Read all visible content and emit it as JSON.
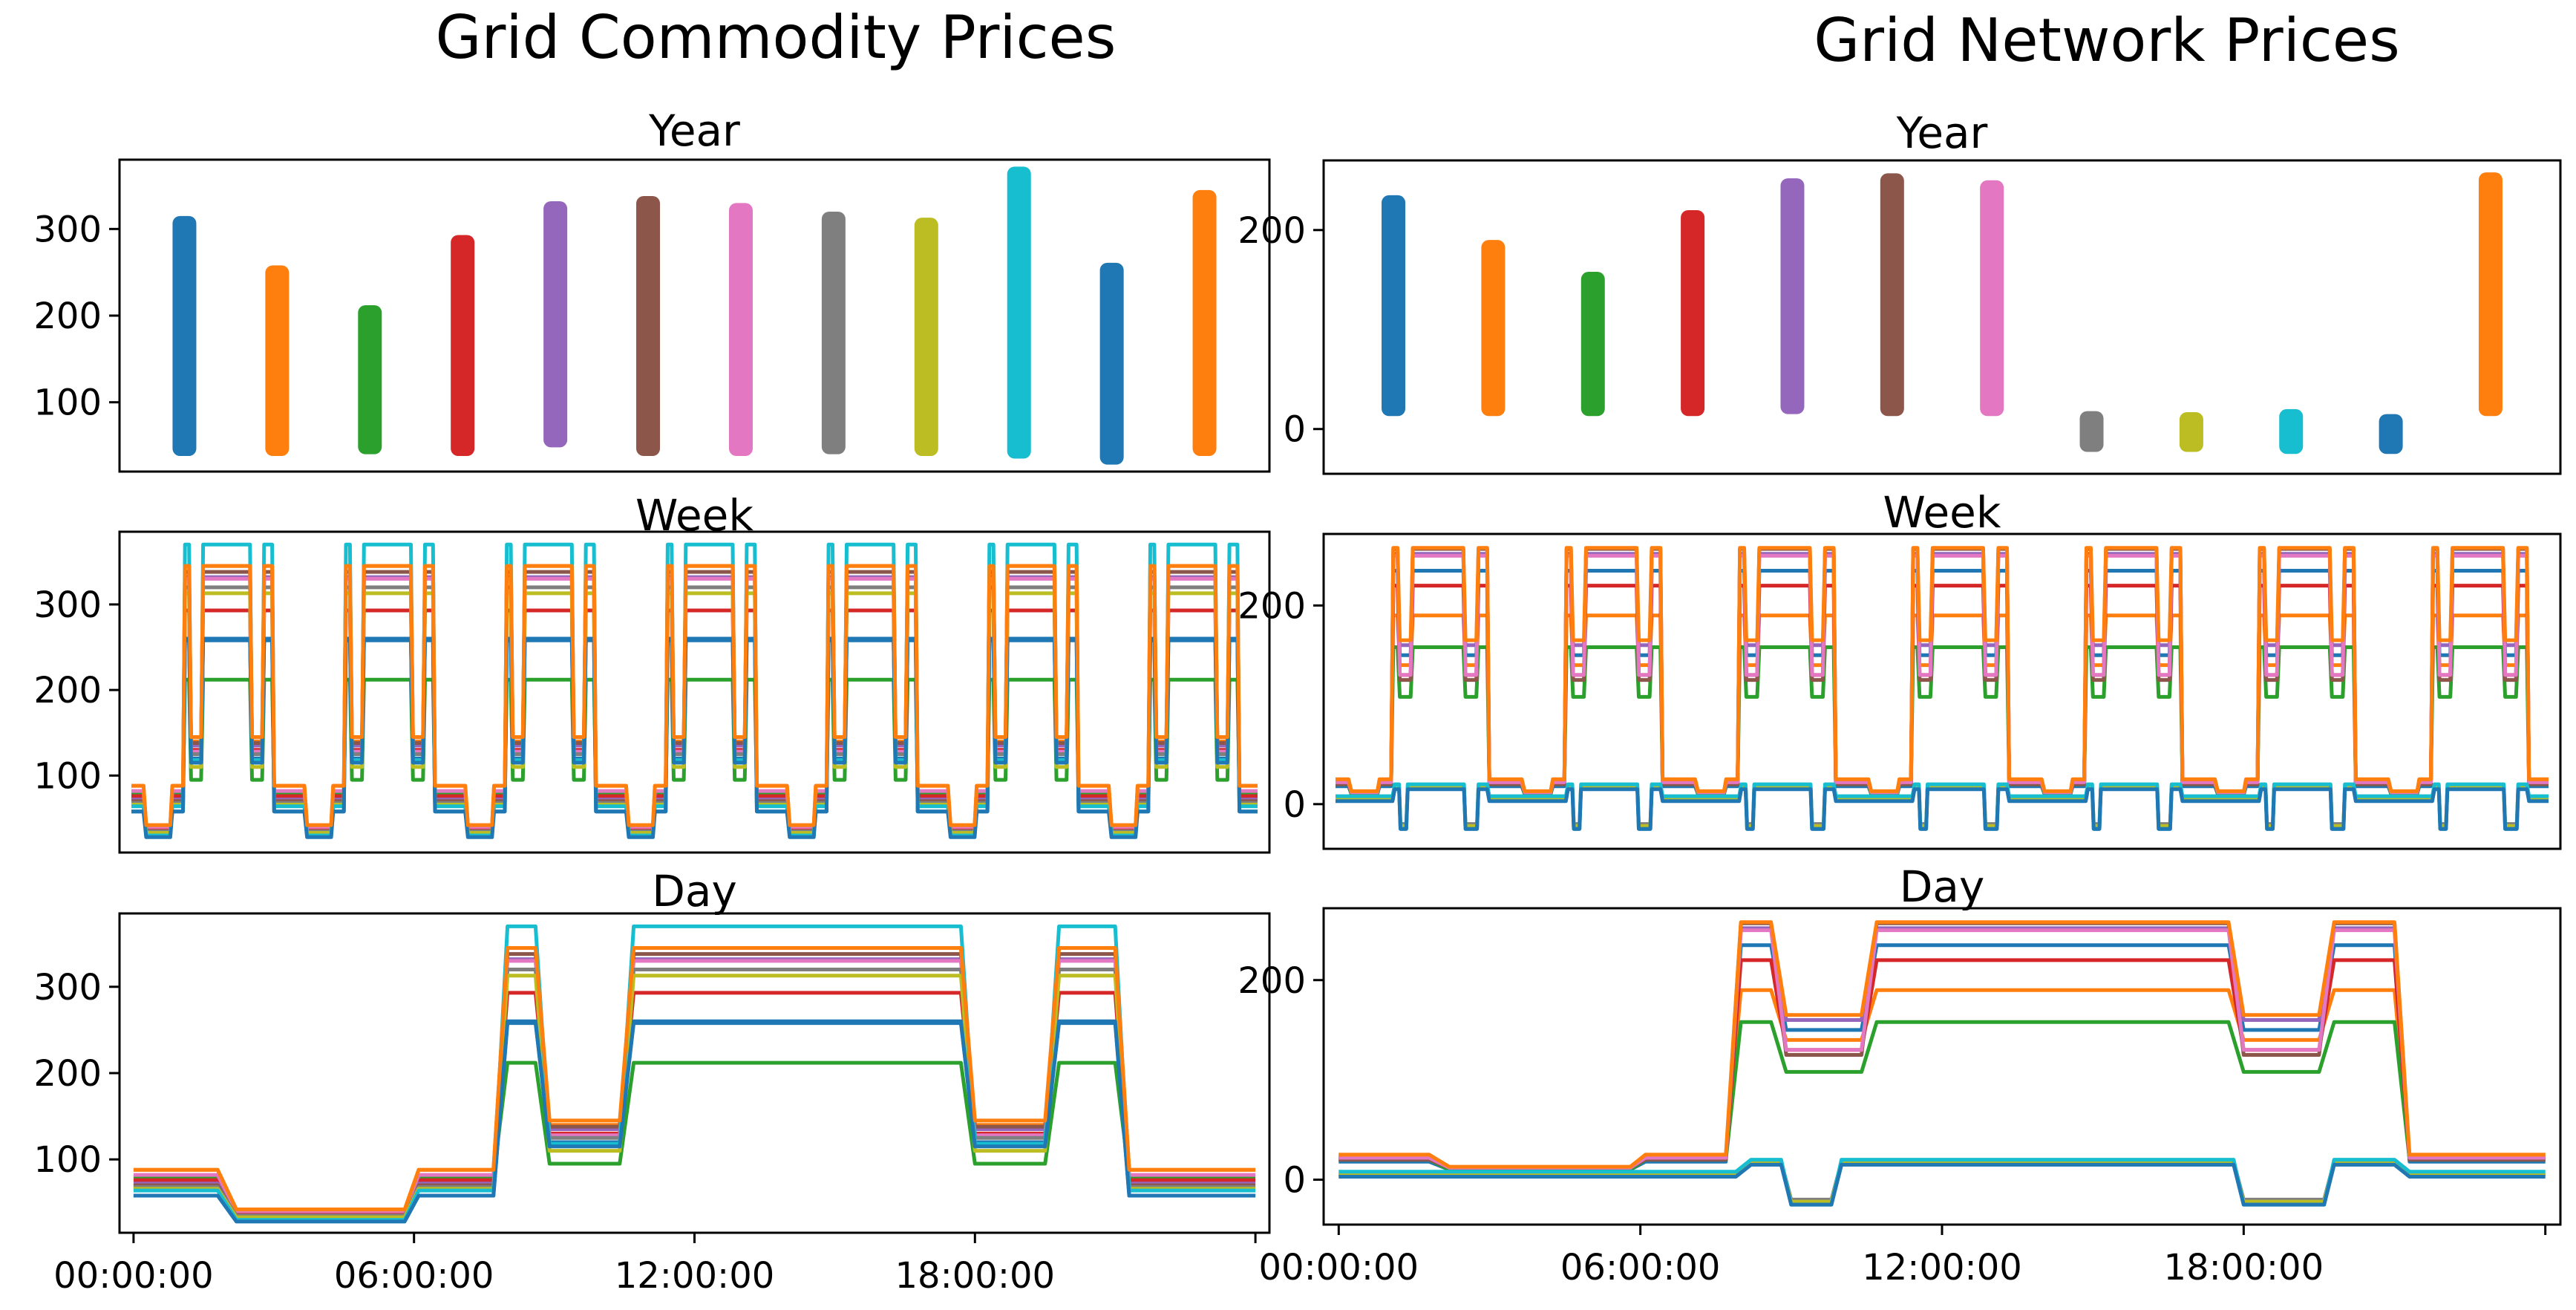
{
  "figure": {
    "left_title": "Grid Commodity Prices",
    "right_title": "Grid Network Prices"
  },
  "colors": [
    "#1f77b4",
    "#ff7f0e",
    "#2ca02c",
    "#d62728",
    "#9467bd",
    "#8c564b",
    "#e377c2",
    "#7f7f7f",
    "#bcbd22",
    "#17becf",
    "#1f77b4",
    "#ff7f0e"
  ],
  "chart_data": [
    {
      "id": "commodity-year",
      "type": "bar",
      "column": "left",
      "title": "Year",
      "ylim": [
        20,
        380
      ],
      "yticks": [
        100,
        200,
        300
      ],
      "ytick_labels": [
        "100",
        "200",
        "300"
      ],
      "ranges": [
        [
          38,
          315
        ],
        [
          38,
          258
        ],
        [
          40,
          212
        ],
        [
          38,
          293
        ],
        [
          48,
          332
        ],
        [
          38,
          338
        ],
        [
          38,
          330
        ],
        [
          40,
          320
        ],
        [
          38,
          313
        ],
        [
          35,
          372
        ],
        [
          28,
          261
        ],
        [
          38,
          345
        ]
      ]
    },
    {
      "id": "commodity-week",
      "type": "line",
      "column": "left",
      "title": "Week",
      "ylim": [
        10,
        385
      ],
      "yticks": [
        100,
        200,
        300
      ],
      "ytick_labels": [
        "100",
        "200",
        "300"
      ],
      "days": 7
    },
    {
      "id": "commodity-day",
      "type": "line",
      "column": "left",
      "title": "Day",
      "xlim": [
        -0.3,
        24.3
      ],
      "ylim": [
        15,
        385
      ],
      "yticks": [
        100,
        200,
        300
      ],
      "ytick_labels": [
        "100",
        "200",
        "300"
      ],
      "xticks": [
        0,
        6,
        12,
        18,
        24
      ],
      "xtick_labels": [
        "00:00:00",
        "06:00:00",
        "12:00:00",
        "18:00:00",
        ""
      ],
      "series": [
        {
          "night": 58,
          "low": 35,
          "peak": 258,
          "mid": 120,
          "top": 258
        },
        {
          "night": 88,
          "low": 42,
          "peak": 345,
          "mid": 140,
          "top": 345
        },
        {
          "night": 80,
          "low": 38,
          "peak": 212,
          "mid": 95,
          "top": 212
        },
        {
          "night": 76,
          "low": 36,
          "peak": 293,
          "mid": 130,
          "top": 293
        },
        {
          "night": 72,
          "low": 34,
          "peak": 332,
          "mid": 135,
          "top": 332
        },
        {
          "night": 70,
          "low": 34,
          "peak": 338,
          "mid": 138,
          "top": 338
        },
        {
          "night": 82,
          "low": 40,
          "peak": 330,
          "mid": 128,
          "top": 330
        },
        {
          "night": 68,
          "low": 35,
          "peak": 320,
          "mid": 125,
          "top": 320
        },
        {
          "night": 66,
          "low": 33,
          "peak": 313,
          "mid": 110,
          "top": 313
        },
        {
          "night": 64,
          "low": 30,
          "peak": 370,
          "mid": 118,
          "top": 370
        },
        {
          "night": 58,
          "low": 28,
          "peak": 260,
          "mid": 115,
          "top": 260
        },
        {
          "night": 88,
          "low": 42,
          "peak": 345,
          "mid": 145,
          "top": 345
        }
      ]
    },
    {
      "id": "network-year",
      "type": "bar",
      "column": "right",
      "title": "Year",
      "ylim": [
        -45,
        270
      ],
      "yticks": [
        0,
        200
      ],
      "ytick_labels": [
        "0",
        "200"
      ],
      "ranges": [
        [
          13,
          235
        ],
        [
          13,
          190
        ],
        [
          13,
          158
        ],
        [
          13,
          220
        ],
        [
          15,
          252
        ],
        [
          13,
          257
        ],
        [
          13,
          250
        ],
        [
          -23,
          18
        ],
        [
          -23,
          17
        ],
        [
          -25,
          20
        ],
        [
          -25,
          15
        ],
        [
          13,
          258
        ]
      ]
    },
    {
      "id": "network-week",
      "type": "line",
      "column": "right",
      "title": "Week",
      "ylim": [
        -45,
        272
      ],
      "yticks": [
        0,
        200
      ],
      "ytick_labels": [
        "0",
        "200"
      ],
      "days": 7
    },
    {
      "id": "network-day",
      "type": "line",
      "column": "right",
      "title": "Day",
      "xlim": [
        -0.3,
        24.3
      ],
      "ylim": [
        -45,
        272
      ],
      "yticks": [
        0,
        200
      ],
      "ytick_labels": [
        "0",
        "200"
      ],
      "xticks": [
        0,
        6,
        12,
        18,
        24
      ],
      "xtick_labels": [
        "00:00:00",
        "06:00:00",
        "12:00:00",
        "18:00:00",
        ""
      ],
      "series": [
        {
          "night": 18,
          "low": 10,
          "peak": 235,
          "mid": 150,
          "top": 235
        },
        {
          "night": 25,
          "low": 12,
          "peak": 190,
          "mid": 140,
          "top": 190
        },
        {
          "night": 20,
          "low": 10,
          "peak": 158,
          "mid": 108,
          "top": 158
        },
        {
          "night": 22,
          "low": 12,
          "peak": 220,
          "mid": 130,
          "top": 220
        },
        {
          "night": 22,
          "low": 12,
          "peak": 252,
          "mid": 160,
          "top": 252
        },
        {
          "night": 20,
          "low": 12,
          "peak": 257,
          "mid": 125,
          "top": 257
        },
        {
          "night": 22,
          "low": 12,
          "peak": 250,
          "mid": 130,
          "top": 250
        },
        {
          "night": 5,
          "low": 5,
          "peak": 18,
          "mid": -20,
          "top": 18,
          "flat": true
        },
        {
          "night": 5,
          "low": 5,
          "peak": 17,
          "mid": -22,
          "top": 17,
          "flat": true
        },
        {
          "night": 8,
          "low": 8,
          "peak": 20,
          "mid": -25,
          "top": 20,
          "flat": true
        },
        {
          "night": 3,
          "low": 3,
          "peak": 15,
          "mid": -25,
          "top": 15,
          "flat": true
        },
        {
          "night": 25,
          "low": 13,
          "peak": 258,
          "mid": 165,
          "top": 258
        }
      ]
    }
  ]
}
